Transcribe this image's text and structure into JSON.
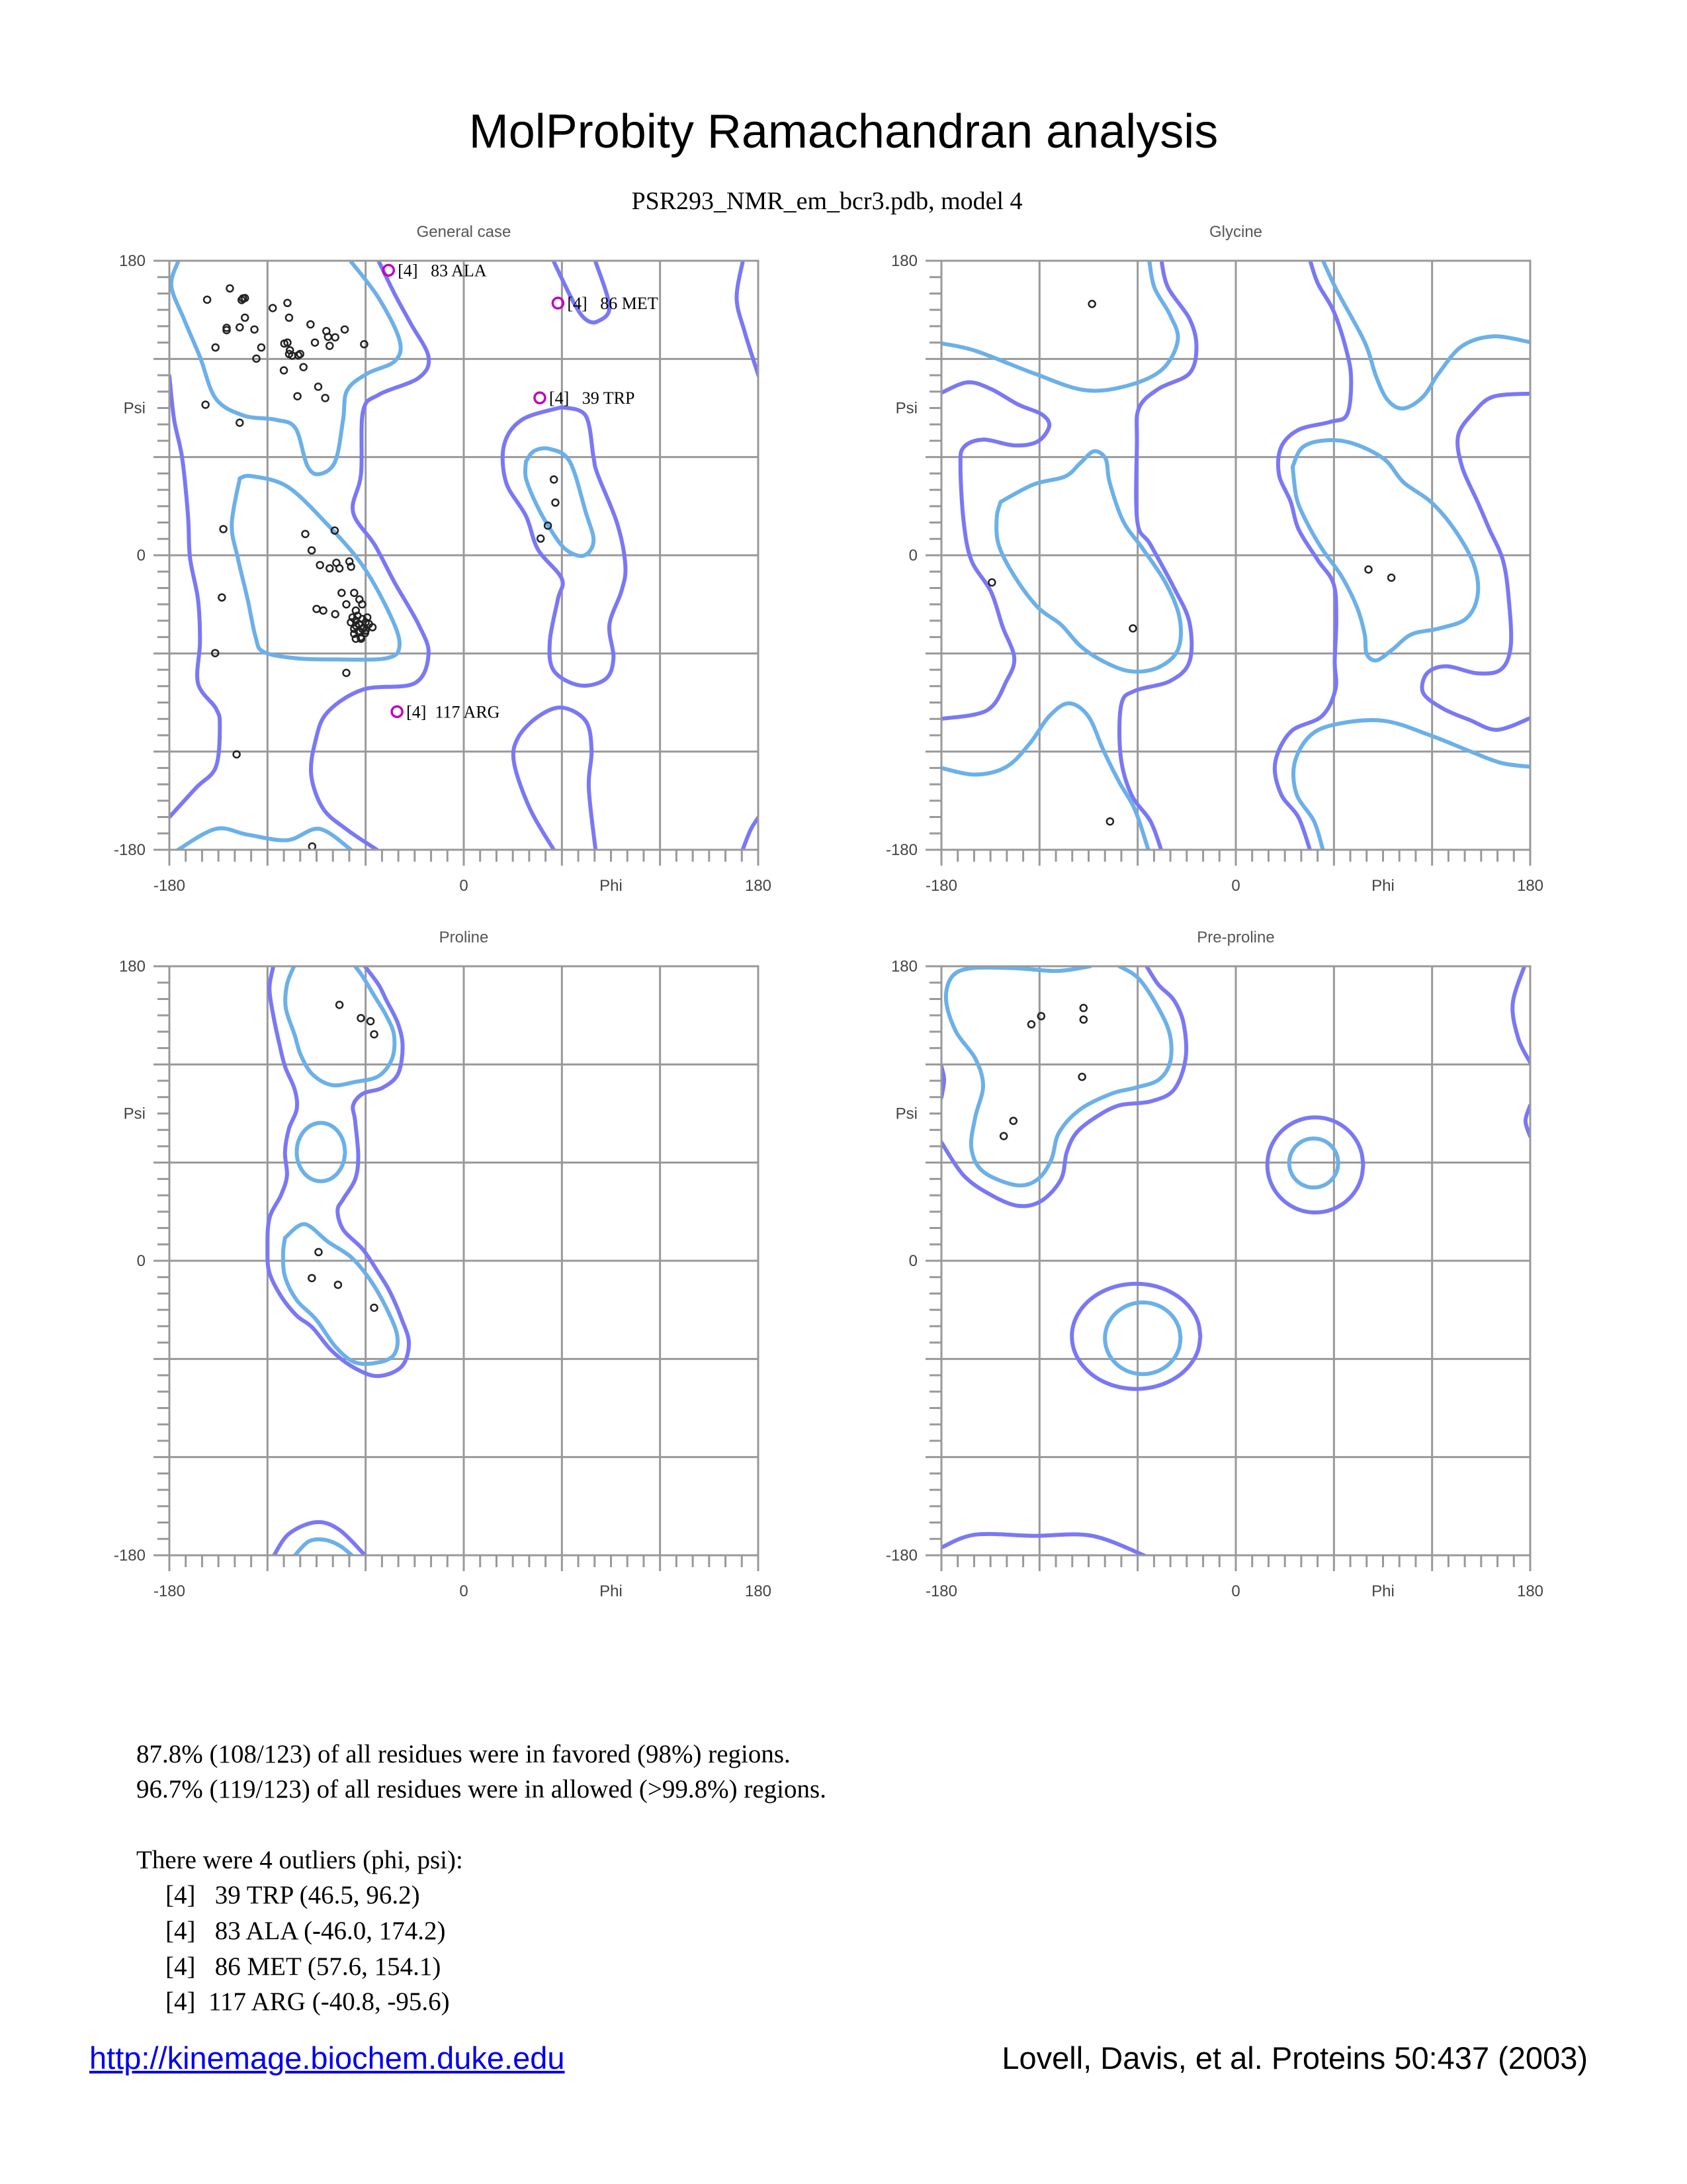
{
  "title": "MolProbity Ramachandran analysis",
  "subtitle": "PSR293_NMR_em_bcr3.pdb, model 4",
  "colors": {
    "favored": "#6cb0e8",
    "allowed": "#7a78f4",
    "outlier": "#c000c0",
    "point": "#222222",
    "grid": "#999999"
  },
  "chart_data": [
    {
      "type": "scatter",
      "title": "General case",
      "xlabel": "Phi",
      "ylabel": "Psi",
      "xlim": [
        -180,
        180
      ],
      "ylim": [
        -180,
        180
      ],
      "x_tick_labels": [
        "-180",
        "0",
        "180"
      ],
      "y_tick_labels": [
        "180",
        "0",
        "-180"
      ],
      "grid": true,
      "points": [
        [
          -156.9,
          156.2
        ],
        [
          -143,
          163.1
        ],
        [
          -135.8,
          156
        ],
        [
          -135,
          157
        ],
        [
          -133.8,
          157.2
        ],
        [
          -116.8,
          151.1
        ],
        [
          -107.8,
          154.2
        ],
        [
          -133.8,
          145.2
        ],
        [
          -106.8,
          145.2
        ],
        [
          -145,
          139
        ],
        [
          -145,
          137.6
        ],
        [
          -137,
          139.3
        ],
        [
          -128,
          138
        ],
        [
          -93.7,
          141.1
        ],
        [
          -84,
          137
        ],
        [
          -83,
          133.5
        ],
        [
          -78.6,
          133.2
        ],
        [
          -72.8,
          138
        ],
        [
          -151.8,
          127
        ],
        [
          -123.8,
          127
        ],
        [
          -109.7,
          129.4
        ],
        [
          -107.8,
          130
        ],
        [
          -91,
          130
        ],
        [
          -82,
          128
        ],
        [
          -60.9,
          129
        ],
        [
          -106.3,
          125.3
        ],
        [
          -106.8,
          123
        ],
        [
          -104.9,
          122
        ],
        [
          -101.2,
          122.2
        ],
        [
          -100,
          123
        ],
        [
          -126.8,
          120.2
        ],
        [
          -110,
          113
        ],
        [
          -98,
          115
        ],
        [
          -89,
          103
        ],
        [
          -101.7,
          97.2
        ],
        [
          -84.7,
          96.1
        ],
        [
          -157.9,
          92
        ],
        [
          -137,
          81
        ],
        [
          -147,
          16
        ],
        [
          -96.9,
          13
        ],
        [
          -78.9,
          15.1
        ],
        [
          -93,
          3
        ],
        [
          -87.9,
          -6
        ],
        [
          -82,
          -8
        ],
        [
          -76,
          -8
        ],
        [
          -77.9,
          -4.6
        ],
        [
          -69.9,
          -3.8
        ],
        [
          -68.9,
          -7
        ],
        [
          -74.7,
          -23
        ],
        [
          -67,
          -23
        ],
        [
          -71.8,
          -30
        ],
        [
          -63.8,
          -27
        ],
        [
          -62.1,
          -30
        ],
        [
          -90,
          -32.8
        ],
        [
          -85.9,
          -33.8
        ],
        [
          -78.6,
          -36
        ],
        [
          -66,
          -33.8
        ],
        [
          -68,
          -38
        ],
        [
          -66,
          -40
        ],
        [
          -64,
          -42
        ],
        [
          -62,
          -39
        ],
        [
          -60,
          -41
        ],
        [
          -67,
          -45
        ],
        [
          -64,
          -47
        ],
        [
          -61,
          -44
        ],
        [
          -58,
          -42
        ],
        [
          -63,
          -50
        ],
        [
          -66,
          -43
        ],
        [
          -69,
          -41
        ],
        [
          -65,
          -37
        ],
        [
          -62,
          -45
        ],
        [
          -60,
          -46
        ],
        [
          -67,
          -48
        ],
        [
          -59,
          -38
        ],
        [
          -55.8,
          -44
        ],
        [
          -66,
          -51
        ],
        [
          -62.8,
          -51
        ],
        [
          -60.4,
          -47.6
        ],
        [
          -147.9,
          -25.8
        ],
        [
          -152,
          -59.8
        ],
        [
          -71.8,
          -71.9
        ],
        [
          -138.9,
          -121.7
        ],
        [
          -92.7,
          -178
        ],
        [
          55.1,
          46.3
        ],
        [
          56,
          32.2
        ],
        [
          51.4,
          18.1
        ],
        [
          47,
          10.2
        ]
      ],
      "outliers": [
        {
          "label": "[4]   83 ALA",
          "phi": -46.0,
          "psi": 174.2
        },
        {
          "label": "[4]   86 MET",
          "phi": 57.6,
          "psi": 154.1
        },
        {
          "label": "[4]   39 TRP",
          "phi": 46.5,
          "psi": 96.2
        },
        {
          "label": "[4]  117 ARG",
          "phi": -40.8,
          "psi": -95.6
        }
      ]
    },
    {
      "type": "scatter",
      "title": "Glycine",
      "xlabel": "Phi",
      "ylabel": "Psi",
      "xlim": [
        -180,
        180
      ],
      "ylim": [
        -180,
        180
      ],
      "x_tick_labels": [
        "-180",
        "0",
        "180"
      ],
      "y_tick_labels": [
        "180",
        "0",
        "-180"
      ],
      "grid": true,
      "points": [
        [
          -87.9,
          153.6
        ],
        [
          -149.1,
          -16.6
        ],
        [
          -62.9,
          -44.7
        ],
        [
          -76.9,
          -162.7
        ],
        [
          81.1,
          -8.7
        ],
        [
          95.1,
          -13.7
        ]
      ],
      "outliers": []
    },
    {
      "type": "scatter",
      "title": "Proline",
      "xlabel": "Phi",
      "ylabel": "Psi",
      "xlim": [
        -180,
        180
      ],
      "ylim": [
        -180,
        180
      ],
      "x_tick_labels": [
        "-180",
        "0",
        "180"
      ],
      "y_tick_labels": [
        "180",
        "0",
        "-180"
      ],
      "grid": true,
      "points": [
        [
          -76,
          156.4
        ],
        [
          -62.9,
          148.3
        ],
        [
          -57,
          146.4
        ],
        [
          -54.8,
          138.4
        ],
        [
          -88.8,
          5.3
        ],
        [
          -92.9,
          -10.6
        ],
        [
          -76.9,
          -14.7
        ],
        [
          -54.8,
          -28.7
        ]
      ],
      "outliers": []
    },
    {
      "type": "scatter",
      "title": "Pre-proline",
      "xlabel": "Phi",
      "ylabel": "Psi",
      "xlim": [
        -180,
        180
      ],
      "ylim": [
        -180,
        180
      ],
      "x_tick_labels": [
        "-180",
        "0",
        "180"
      ],
      "y_tick_labels": [
        "180",
        "0",
        "-180"
      ],
      "grid": true,
      "points": [
        [
          -125,
          144.5
        ],
        [
          -119,
          149.5
        ],
        [
          -93.1,
          154.5
        ],
        [
          -93.1,
          147.4
        ],
        [
          -94,
          112.4
        ],
        [
          -136,
          85.5
        ],
        [
          -141.9,
          76.2
        ]
      ],
      "outliers": []
    }
  ],
  "summary": {
    "favored": "87.8% (108/123) of all residues were in favored (98%) regions.",
    "allowed": "96.7% (119/123) of all residues were in allowed (>99.8%) regions.",
    "outliers_heading": "There were 4 outliers (phi, psi):",
    "outliers": [
      "[4]   39 TRP (46.5, 96.2)",
      "[4]   83 ALA (-46.0, 174.2)",
      "[4]   86 MET (57.6, 154.1)",
      "[4]  117 ARG (-40.8, -95.6)"
    ]
  },
  "footer": {
    "link": "http://kinemage.biochem.duke.edu",
    "citation": "Lovell, Davis, et al. Proteins 50:437 (2003)"
  }
}
